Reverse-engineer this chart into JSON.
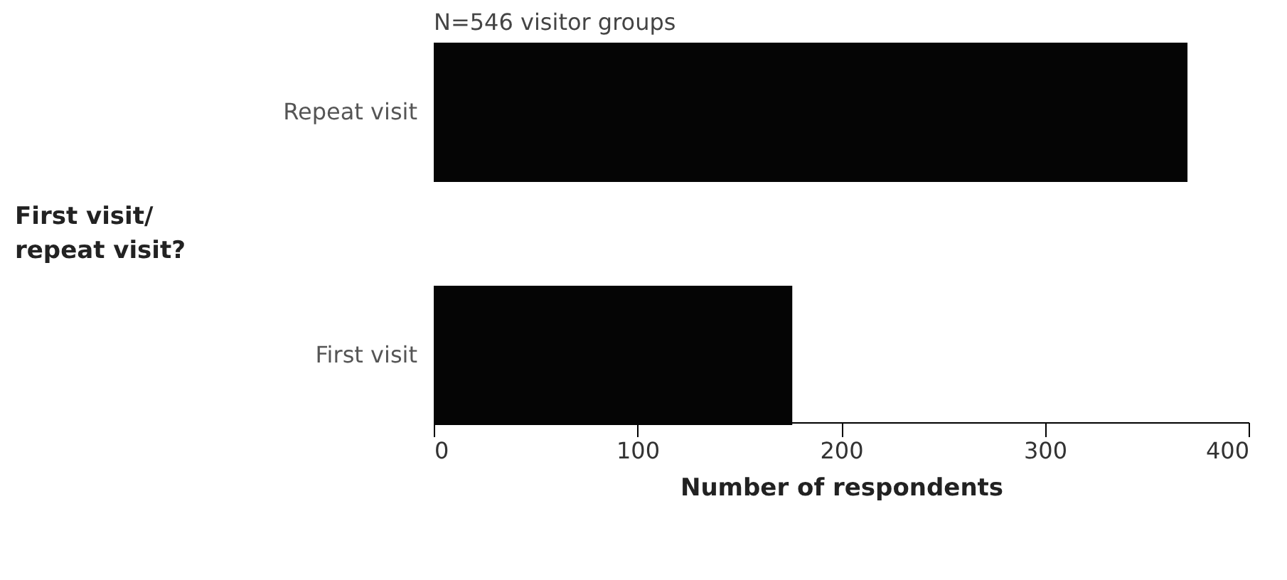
{
  "chart_data": {
    "type": "bar",
    "orientation": "horizontal",
    "title": "N=546 visitor groups",
    "categories": [
      "Repeat visit",
      "First visit"
    ],
    "values": [
      370,
      176
    ],
    "color": "#050505",
    "xlabel": "Number of respondents",
    "ylabel": "First visit/\nrepeat visit?",
    "xlim": [
      0,
      400
    ],
    "xticks": [
      0,
      100,
      200,
      300,
      400
    ],
    "grid": false
  }
}
